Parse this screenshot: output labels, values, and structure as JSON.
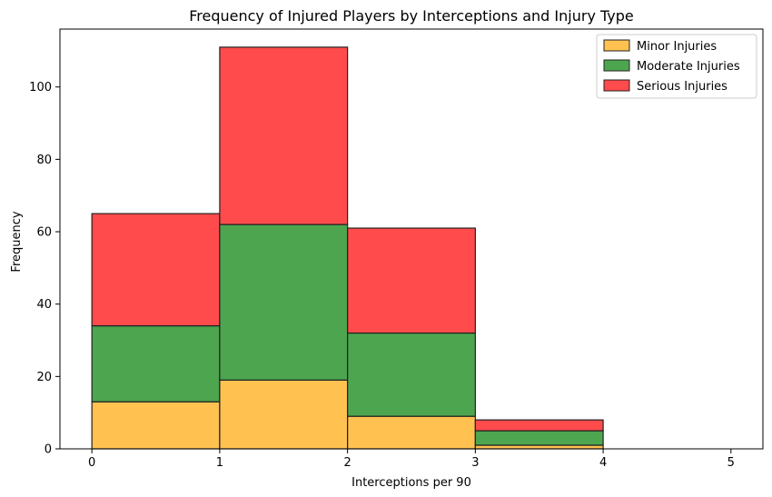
{
  "chart_data": {
    "type": "bar",
    "stacked": true,
    "title": "Frequency of Injured Players by Interceptions and Injury Type",
    "xlabel": "Interceptions per 90",
    "ylabel": "Frequency",
    "bins": [
      [
        0,
        1
      ],
      [
        1,
        2
      ],
      [
        2,
        3
      ],
      [
        3,
        4
      ],
      [
        4,
        5
      ]
    ],
    "xticks": [
      0,
      1,
      2,
      3,
      4,
      5
    ],
    "yticks": [
      0,
      20,
      40,
      60,
      80,
      100
    ],
    "xlim": [
      -0.25,
      5.25
    ],
    "ylim": [
      0,
      116
    ],
    "grid": false,
    "legend_position": "top-right",
    "series": [
      {
        "name": "Minor Injuries",
        "color": "#ffb732",
        "values": [
          13,
          19,
          9,
          1,
          0
        ]
      },
      {
        "name": "Moderate Injuries",
        "color": "#2e9630",
        "values": [
          21,
          43,
          23,
          4,
          0
        ]
      },
      {
        "name": "Serious Injuries",
        "color": "#ff2c2c",
        "values": [
          31,
          49,
          29,
          3,
          0
        ]
      }
    ]
  }
}
